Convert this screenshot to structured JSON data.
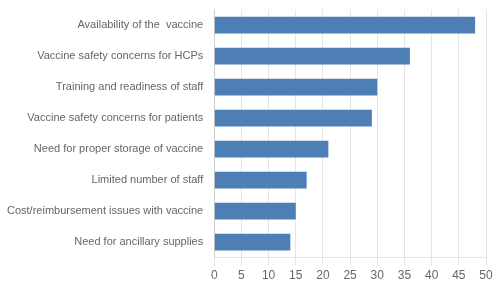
{
  "chart_data": {
    "type": "bar",
    "orientation": "horizontal",
    "categories": [
      "Need for ancillary supplies",
      "Cost/reimbursement issues with vaccine",
      "Limited number of staff",
      "Need for proper storage of vaccine",
      "Vaccine safety concerns for patients",
      "Training and readiness of staff",
      "Vaccine safety concerns for HCPs",
      "Availability of the  vaccine"
    ],
    "values": [
      14,
      15,
      17,
      21,
      29,
      30,
      36,
      48
    ],
    "color": "#4d7eb5",
    "xlim": [
      0,
      50
    ],
    "xticks": [
      0,
      5,
      10,
      15,
      20,
      25,
      30,
      35,
      40,
      45,
      50
    ],
    "grid": true
  }
}
